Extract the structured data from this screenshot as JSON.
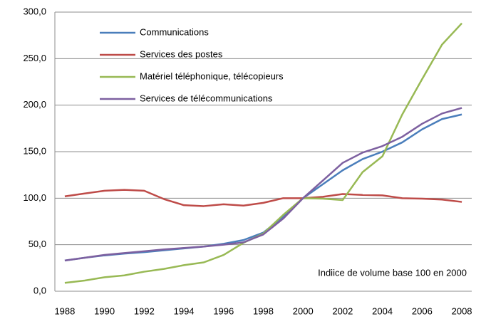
{
  "chart_data": {
    "type": "line",
    "annotation": "Indiice de volume base 100 en 2000",
    "x": [
      1988,
      1989,
      1990,
      1991,
      1992,
      1993,
      1994,
      1995,
      1996,
      1997,
      1998,
      1999,
      2000,
      2001,
      2002,
      2003,
      2004,
      2005,
      2006,
      2007,
      2008
    ],
    "series": [
      {
        "name": "Communications",
        "color": "#4a7ebb",
        "values": [
          33,
          36,
          38.5,
          40.5,
          42,
          44,
          46,
          48,
          51,
          55,
          63,
          80,
          100,
          115,
          130,
          142,
          150,
          160,
          174,
          185,
          190
        ]
      },
      {
        "name": "Services des postes",
        "color": "#be4b48",
        "values": [
          102,
          105,
          108,
          109,
          108,
          99,
          92.5,
          91.5,
          93.5,
          92,
          95,
          100,
          100,
          101.5,
          104.5,
          103.5,
          103,
          100,
          99.5,
          98.5,
          96
        ]
      },
      {
        "name": "Matériel téléphonique, télécopieurs",
        "color": "#98b954",
        "values": [
          9,
          11.5,
          15,
          17,
          21,
          24,
          28,
          31,
          39,
          52,
          62,
          82,
          100,
          99.5,
          98,
          128,
          145,
          190,
          228,
          265,
          288
        ]
      },
      {
        "name": "Services de télécommunications",
        "color": "#7d60a0",
        "values": [
          33,
          36,
          39,
          41,
          43,
          45,
          46.5,
          48,
          50,
          52.5,
          61,
          78,
          100,
          119,
          138,
          149,
          156,
          166,
          180,
          191,
          197
        ]
      }
    ],
    "xlim": [
      1987.5,
      2008.5
    ],
    "xticks": [
      1988,
      1990,
      1992,
      1994,
      1996,
      1998,
      2000,
      2002,
      2004,
      2006,
      2008
    ],
    "ylim": [
      0,
      300
    ],
    "yticks": [
      {
        "value": 0,
        "label": "0,0"
      },
      {
        "value": 50,
        "label": "50,0"
      },
      {
        "value": 100,
        "label": "100,0"
      },
      {
        "value": 150,
        "label": "150,0"
      },
      {
        "value": 200,
        "label": "200,0"
      },
      {
        "value": 250,
        "label": "250,0"
      },
      {
        "value": 300,
        "label": "300,0"
      }
    ],
    "grid": true
  }
}
